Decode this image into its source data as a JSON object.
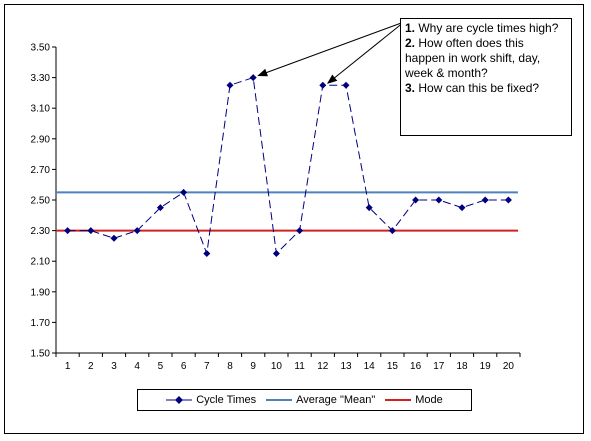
{
  "chart_data": {
    "type": "line",
    "title": "",
    "xlabel": "",
    "ylabel": "",
    "x": [
      1,
      2,
      3,
      4,
      5,
      6,
      7,
      8,
      9,
      10,
      11,
      12,
      13,
      14,
      15,
      16,
      17,
      18,
      19,
      20
    ],
    "xticks": [
      "1",
      "2",
      "3",
      "4",
      "5",
      "6",
      "7",
      "8",
      "9",
      "10",
      "11",
      "12",
      "13",
      "14",
      "15",
      "16",
      "17",
      "18",
      "19",
      "20"
    ],
    "ylim": [
      1.5,
      3.5
    ],
    "yticks": [
      "1.50",
      "1.70",
      "1.90",
      "2.10",
      "2.30",
      "2.50",
      "2.70",
      "2.90",
      "3.10",
      "3.30",
      "3.50"
    ],
    "grid": false,
    "legend_position": "bottom",
    "series": [
      {
        "name": "Cycle Times",
        "style": "dashed-line-diamond-markers",
        "color": "#00007f",
        "values": [
          2.3,
          2.3,
          2.25,
          2.3,
          2.45,
          2.55,
          2.15,
          3.25,
          3.3,
          2.15,
          2.3,
          3.25,
          3.25,
          2.45,
          2.3,
          2.5,
          2.5,
          2.45,
          2.5,
          2.5
        ]
      },
      {
        "name": "Average \"Mean\"",
        "style": "solid-line",
        "color": "#4f81bd",
        "value": 2.55
      },
      {
        "name": "Mode",
        "style": "solid-line",
        "color": "#d22020",
        "value": 2.3
      }
    ],
    "annotation": {
      "items": [
        {
          "num": "1.",
          "text": " Why are cycle times high?"
        },
        {
          "num": "2.",
          "text": " How often does this happen in work shift, day, week & month?"
        },
        {
          "num": "3.",
          "text": " How can this be fixed?"
        }
      ],
      "arrow_targets_x": [
        9,
        12
      ]
    }
  }
}
